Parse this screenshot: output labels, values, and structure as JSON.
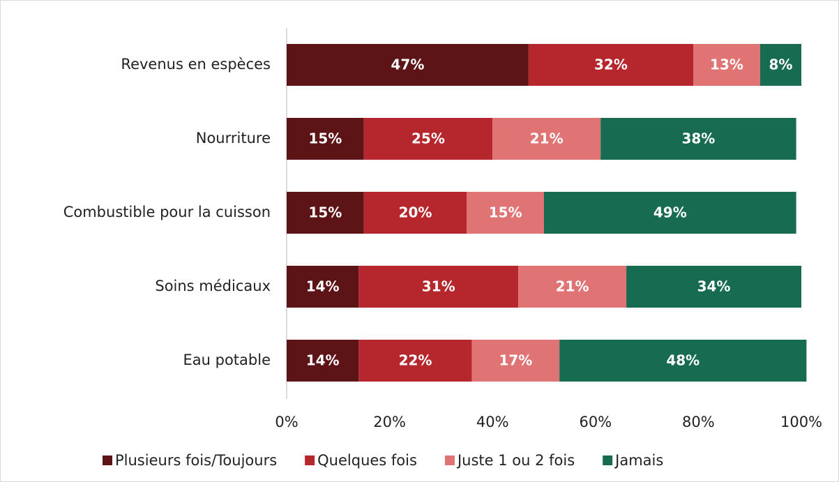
{
  "chart_data": {
    "type": "stacked-barh",
    "categories": [
      "Revenus en espèces",
      "Nourriture",
      "Combustible pour la cuisson",
      "Soins médicaux",
      "Eau potable"
    ],
    "series": [
      {
        "name": "Plusieurs fois/Toujours",
        "color": "#5c1416",
        "values": [
          47,
          15,
          15,
          14,
          14
        ],
        "value_labels": [
          "47%",
          "15%",
          "15%",
          "14%",
          "14%"
        ]
      },
      {
        "name": "Quelques fois",
        "color": "#b5272d",
        "values": [
          32,
          25,
          20,
          31,
          22
        ],
        "value_labels": [
          "32%",
          "25%",
          "20%",
          "31%",
          "22%"
        ]
      },
      {
        "name": "Juste 1 ou 2 fois",
        "color": "#e07373",
        "values": [
          13,
          21,
          15,
          21,
          17
        ],
        "value_labels": [
          "13%",
          "21%",
          "15%",
          "21%",
          "17%"
        ]
      },
      {
        "name": "Jamais",
        "color": "#176b50",
        "values": [
          8,
          38,
          49,
          34,
          48
        ],
        "value_labels": [
          "8%",
          "38%",
          "49%",
          "34%",
          "48%"
        ]
      }
    ],
    "xlim": [
      0,
      100
    ],
    "xticks": [
      {
        "value": 0,
        "label": "0%"
      },
      {
        "value": 20,
        "label": "20%"
      },
      {
        "value": 40,
        "label": "40%"
      },
      {
        "value": 60,
        "label": "60%"
      },
      {
        "value": 80,
        "label": "80%"
      },
      {
        "value": 100,
        "label": "100%"
      }
    ],
    "legend": "bottom"
  }
}
